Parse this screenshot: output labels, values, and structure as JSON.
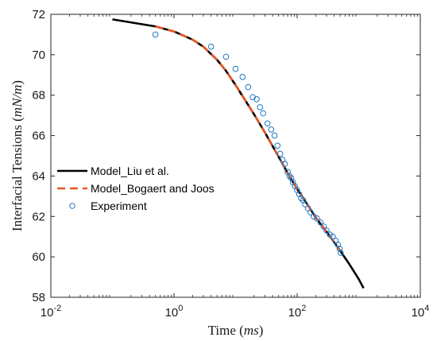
{
  "chart_data": {
    "type": "line",
    "x_scale": "log",
    "xlim": [
      0.01,
      10000
    ],
    "ylim": [
      58,
      72
    ],
    "x_ticks": [
      {
        "value": 0.01,
        "base": "10",
        "exp": "-2"
      },
      {
        "value": 1,
        "base": "10",
        "exp": "0"
      },
      {
        "value": 100,
        "base": "10",
        "exp": "2"
      },
      {
        "value": 10000,
        "base": "10",
        "exp": "4"
      }
    ],
    "y_ticks": [
      58,
      60,
      62,
      64,
      66,
      68,
      70,
      72
    ],
    "xlabel": {
      "text": "Time (",
      "var": "ms",
      "close": ")"
    },
    "ylabel": {
      "text": "Interfacial Tensions (",
      "var": "mN/m",
      "close": ")"
    },
    "grid": false,
    "legend_position": "center-left",
    "series": [
      {
        "name": "Model_Liu et al.",
        "style": "solid",
        "color": "#000000",
        "x": [
          0.1,
          0.5,
          1,
          2,
          3,
          5,
          7,
          10,
          15,
          20,
          30,
          50,
          70,
          100,
          150,
          200,
          300,
          500,
          700,
          1000,
          1200
        ],
        "y": [
          71.75,
          71.4,
          71.15,
          70.75,
          70.4,
          69.75,
          69.2,
          68.5,
          67.65,
          67.05,
          66.15,
          64.95,
          64.15,
          63.35,
          62.55,
          61.95,
          61.25,
          60.3,
          59.65,
          58.9,
          58.45
        ]
      },
      {
        "name": "Model_Bogaert and Joos",
        "style": "dashed",
        "color": "#e8561f",
        "x": [
          0.5,
          1,
          2,
          3,
          5,
          7,
          10,
          15,
          20,
          30,
          50,
          70,
          100,
          150,
          200,
          300,
          500
        ],
        "y": [
          71.4,
          71.15,
          70.75,
          70.4,
          69.75,
          69.2,
          68.5,
          67.65,
          67.05,
          66.15,
          64.95,
          64.15,
          63.35,
          62.55,
          61.95,
          61.25,
          60.3
        ]
      },
      {
        "name": "Experiment",
        "style": "markers",
        "color": "#1f77c4",
        "x": [
          0.5,
          4,
          7,
          10,
          13,
          16,
          19,
          22,
          25,
          28,
          33,
          38,
          43,
          48,
          53,
          58,
          63,
          70,
          75,
          80,
          85,
          92,
          100,
          108,
          116,
          125,
          135,
          150,
          165,
          185,
          210,
          240,
          270,
          300,
          340,
          380,
          420,
          460,
          490,
          510
        ],
        "y": [
          71.0,
          70.4,
          69.9,
          69.3,
          68.9,
          68.4,
          67.9,
          67.8,
          67.4,
          67.1,
          66.6,
          66.3,
          66.0,
          65.5,
          65.1,
          64.8,
          64.6,
          64.2,
          64.0,
          63.9,
          63.7,
          63.5,
          63.3,
          63.1,
          62.9,
          62.8,
          62.6,
          62.4,
          62.2,
          62.0,
          61.9,
          61.7,
          61.5,
          61.3,
          61.1,
          61.0,
          60.8,
          60.6,
          60.4,
          60.2
        ]
      }
    ]
  }
}
